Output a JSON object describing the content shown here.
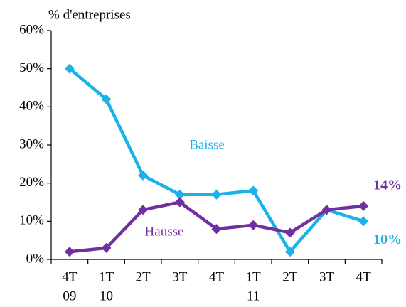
{
  "chart_data": {
    "type": "line",
    "y_label": "% d'entreprises",
    "categories": [
      [
        "4T",
        "09"
      ],
      [
        "1T",
        "10"
      ],
      [
        "2T"
      ],
      [
        "3T"
      ],
      [
        "4T"
      ],
      [
        "1T",
        "11"
      ],
      [
        "2T"
      ],
      [
        "3T"
      ],
      [
        "4T"
      ]
    ],
    "series": [
      {
        "name": "Baisse",
        "color": "#1ab2e8",
        "values": [
          50,
          42,
          22,
          17,
          17,
          18,
          2,
          13,
          10
        ],
        "value_labels": [
          null,
          null,
          null,
          null,
          null,
          null,
          null,
          null,
          "10%"
        ]
      },
      {
        "name": "Hausse",
        "color": "#7030a0",
        "values": [
          2,
          3,
          13,
          15,
          8,
          9,
          7,
          13,
          14
        ],
        "value_labels": [
          null,
          null,
          null,
          null,
          null,
          null,
          null,
          null,
          "14%"
        ]
      }
    ],
    "ylim": [
      0,
      60
    ],
    "yticks": [
      {
        "value": 0,
        "label": "0%"
      },
      {
        "value": 10,
        "label": "10%"
      },
      {
        "value": 20,
        "label": "20%"
      },
      {
        "value": 30,
        "label": "30%"
      },
      {
        "value": 40,
        "label": "40%"
      },
      {
        "value": 50,
        "label": "50%"
      },
      {
        "value": 60,
        "label": "60%"
      }
    ],
    "grid": false
  }
}
